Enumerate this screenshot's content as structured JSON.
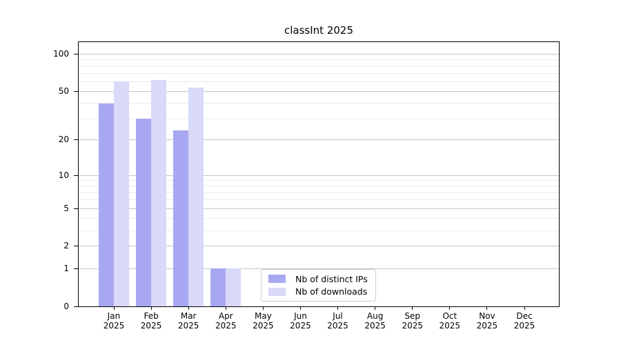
{
  "chart_data": {
    "type": "bar",
    "title": "classInt 2025",
    "categories": [
      "Jan",
      "Feb",
      "Mar",
      "Apr",
      "May",
      "Jun",
      "Jul",
      "Aug",
      "Sep",
      "Oct",
      "Nov",
      "Dec"
    ],
    "x_year_label": "2025",
    "series": [
      {
        "name": "Nb of distinct IPs",
        "color": "#a8a8f2",
        "values": [
          40,
          30,
          24,
          1,
          0,
          0,
          0,
          0,
          0,
          0,
          0,
          0
        ]
      },
      {
        "name": "Nb of downloads",
        "color": "#d9d9f8",
        "values": [
          60,
          62,
          54,
          1,
          0,
          0,
          0,
          0,
          0,
          0,
          0,
          0
        ]
      }
    ],
    "y_scale": "log1p",
    "ylim": [
      0,
      125
    ],
    "y_major_ticks": [
      0,
      1,
      2,
      5,
      10,
      20,
      50,
      100
    ],
    "y_minor_ticks": [
      3,
      4,
      6,
      7,
      8,
      9,
      30,
      40,
      60,
      70,
      80,
      90
    ],
    "grid": true,
    "legend_position": "lower center",
    "colors": {
      "major_gridline": "#c6c6c6",
      "minor_gridline": "#ebebeb",
      "axis": "#000000",
      "text": "#000000",
      "legend_border": "#cccccc"
    }
  }
}
